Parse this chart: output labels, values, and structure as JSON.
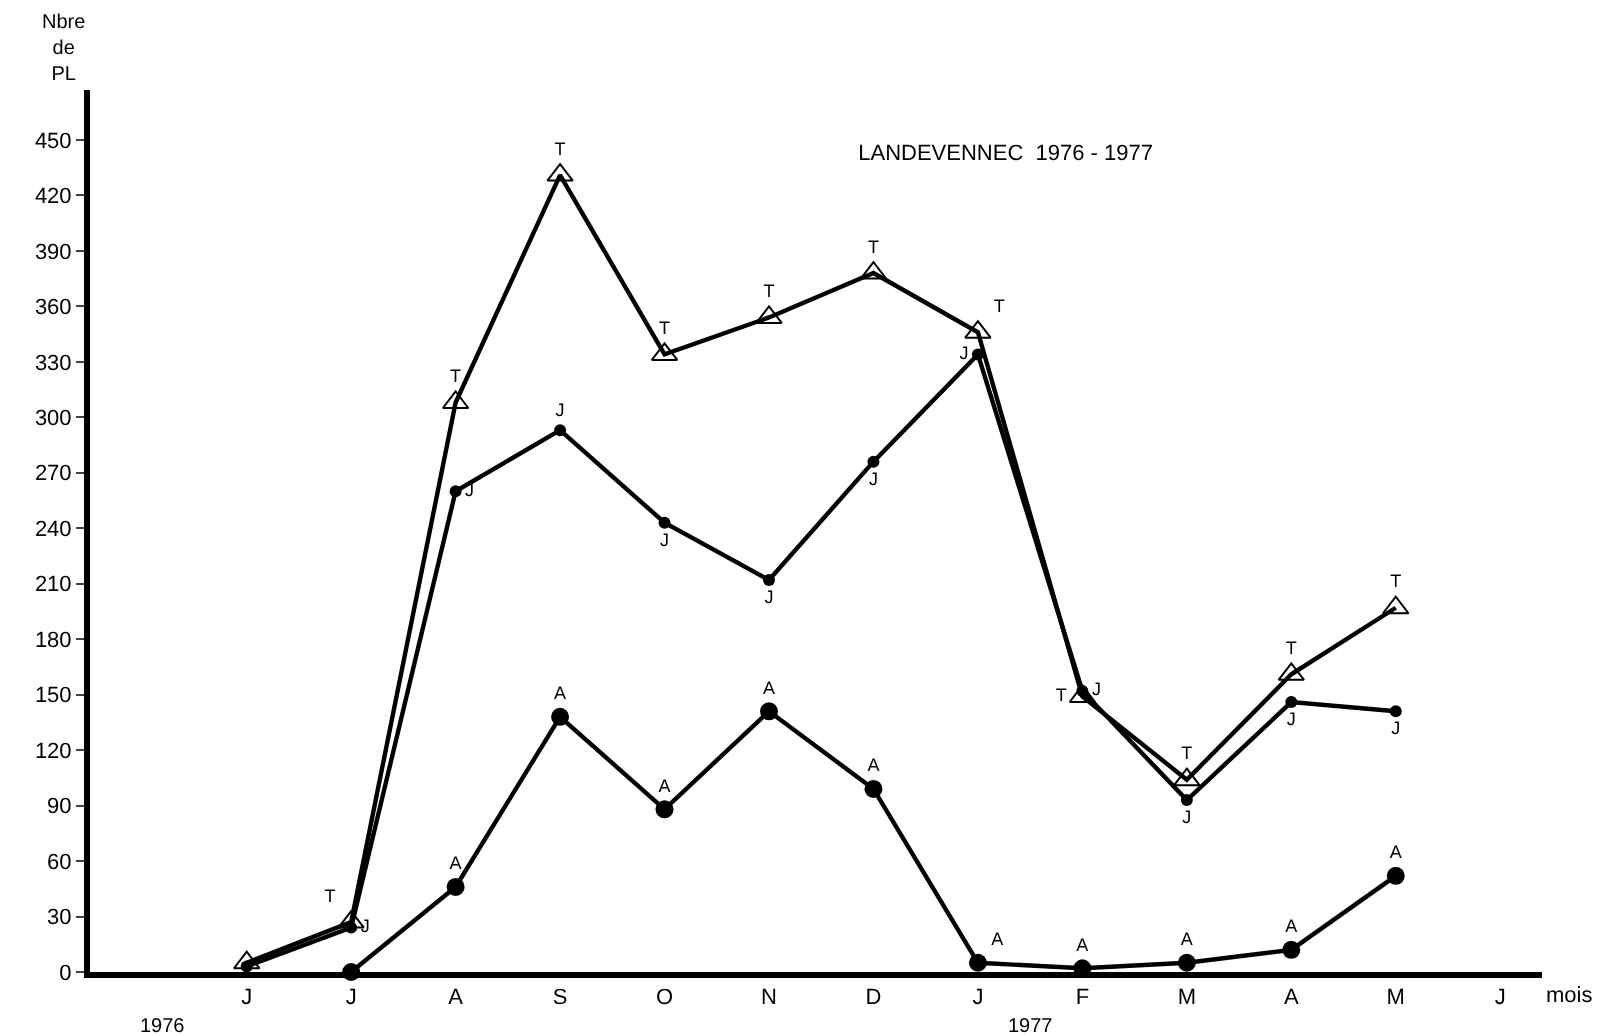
{
  "chart_data": {
    "type": "line",
    "title": "LANDEVENNEC  1976 - 1977",
    "xlabel": "mois",
    "ylabel": "Nbre de PL",
    "categories": [
      "J",
      "J",
      "A",
      "S",
      "O",
      "N",
      "D",
      "J",
      "F",
      "M",
      "A",
      "M",
      "J"
    ],
    "series": [
      {
        "name": "T",
        "color": "#000000",
        "marker": "triangle",
        "values": [
          5,
          27,
          308,
          431,
          334,
          354,
          378,
          346,
          149,
          104,
          161,
          197,
          null
        ]
      },
      {
        "name": "J",
        "color": "#000000",
        "marker": "circle",
        "values": [
          3,
          24,
          260,
          293,
          243,
          212,
          276,
          334,
          152,
          93,
          146,
          141,
          null
        ]
      },
      {
        "name": "A",
        "color": "#000000",
        "marker": "circle",
        "values": [
          null,
          0,
          46,
          138,
          88,
          141,
          99,
          5,
          2,
          5,
          12,
          52,
          null
        ]
      }
    ],
    "ylim": [
      0,
      477
    ],
    "yticks": [
      0,
      30,
      60,
      90,
      120,
      150,
      180,
      210,
      240,
      270,
      300,
      330,
      360,
      390,
      420,
      450
    ],
    "annotations": [
      "1976",
      "1977"
    ],
    "legend": false,
    "line_style": "solid"
  }
}
